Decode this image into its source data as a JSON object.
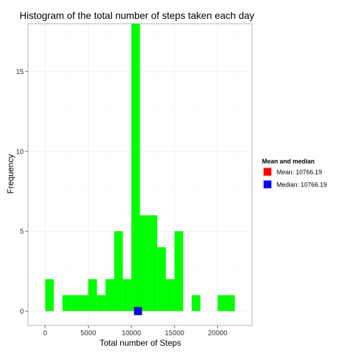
{
  "chart_data": {
    "type": "bar",
    "title": "Histogram of the total number of steps taken each day",
    "xlabel": "Total number of Steps",
    "ylabel": "Frequency",
    "bin_width": 1000,
    "bins": [
      {
        "x0": 0,
        "x1": 1000,
        "count": 2
      },
      {
        "x0": 2000,
        "x1": 3000,
        "count": 1
      },
      {
        "x0": 3000,
        "x1": 4000,
        "count": 1
      },
      {
        "x0": 4000,
        "x1": 5000,
        "count": 1
      },
      {
        "x0": 5000,
        "x1": 6000,
        "count": 2
      },
      {
        "x0": 6000,
        "x1": 7000,
        "count": 1
      },
      {
        "x0": 7000,
        "x1": 8000,
        "count": 2
      },
      {
        "x0": 8000,
        "x1": 9000,
        "count": 5
      },
      {
        "x0": 9000,
        "x1": 10000,
        "count": 2
      },
      {
        "x0": 10000,
        "x1": 11000,
        "count": 18
      },
      {
        "x0": 11000,
        "x1": 12000,
        "count": 6
      },
      {
        "x0": 12000,
        "x1": 13000,
        "count": 6
      },
      {
        "x0": 13000,
        "x1": 14000,
        "count": 4
      },
      {
        "x0": 14000,
        "x1": 15000,
        "count": 2
      },
      {
        "x0": 15000,
        "x1": 16000,
        "count": 5
      },
      {
        "x0": 17000,
        "x1": 18000,
        "count": 1
      },
      {
        "x0": 20000,
        "x1": 21000,
        "count": 1
      },
      {
        "x0": 21000,
        "x1": 22000,
        "count": 1
      }
    ],
    "xlim": [
      -2000,
      24000
    ],
    "ylim": [
      -0.9,
      18.0
    ],
    "x_ticks": [
      0,
      5000,
      10000,
      15000,
      20000
    ],
    "x_tick_labels": [
      "0",
      "5000",
      "10000",
      "15000",
      "20000"
    ],
    "y_ticks": [
      0,
      5,
      10,
      15
    ],
    "y_tick_labels": [
      "0",
      "5",
      "10",
      "15"
    ],
    "bar_color": "#00ff00",
    "markers": [
      {
        "name": "Mean",
        "label": "Mean: 10766.19",
        "x": 10766.19,
        "y": 0,
        "color": "#ff0000"
      },
      {
        "name": "Median",
        "label": "Median: 10766.19",
        "x": 10766.19,
        "y": 0,
        "color": "#0000ff"
      }
    ],
    "legend": {
      "title": "Mean and median",
      "position": "right"
    },
    "grid": true,
    "panel_color": "#ffffff",
    "grid_color": "#ebebeb"
  }
}
